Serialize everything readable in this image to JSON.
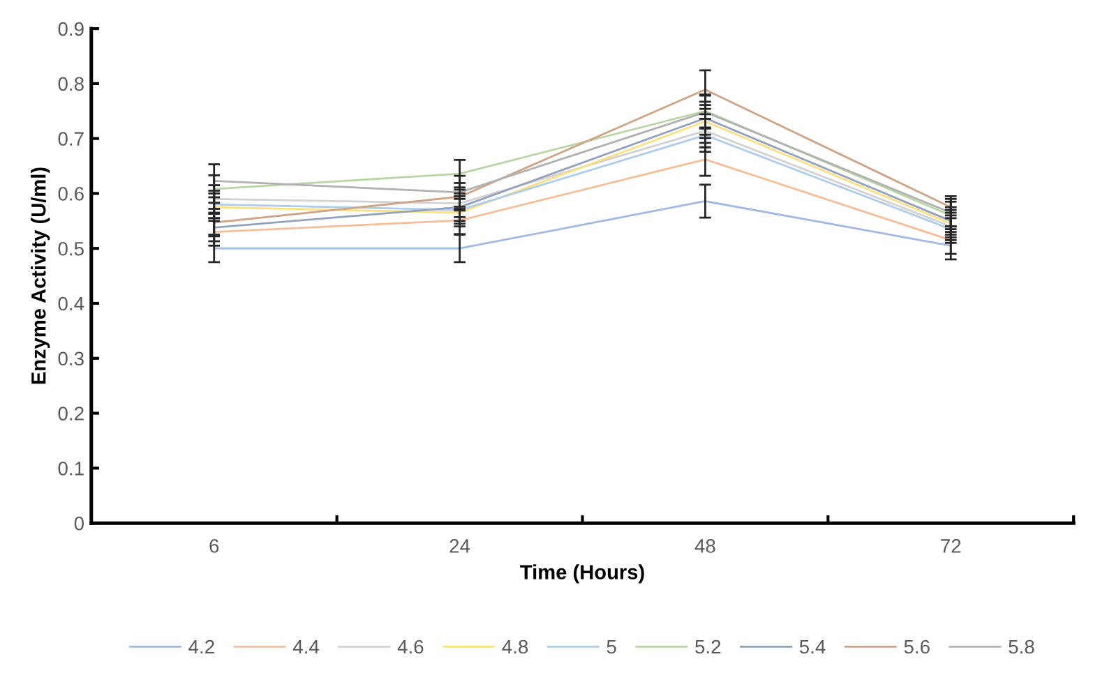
{
  "chart_data": {
    "type": "line",
    "xlabel": "Time (Hours)",
    "ylabel": "Enzyme Activity (U/ml)",
    "categories": [
      "6",
      "24",
      "48",
      "72"
    ],
    "ylim": [
      0,
      0.9
    ],
    "yticks": [
      0,
      0.1,
      0.2,
      0.3,
      0.4,
      0.5,
      0.6,
      0.7,
      0.8,
      0.9
    ],
    "grid": false,
    "legend": "bottom",
    "marker": "none",
    "line_style": "solid",
    "series": [
      {
        "name": "4.2",
        "color": "#a1b8e1",
        "values": [
          0.5,
          0.5,
          0.586,
          0.505
        ],
        "errors": [
          0.025,
          0.025,
          0.03,
          0.025
        ]
      },
      {
        "name": "4.4",
        "color": "#f6be98",
        "values": [
          0.53,
          0.551,
          0.662,
          0.515
        ],
        "errors": [
          0.025,
          0.025,
          0.03,
          0.025
        ]
      },
      {
        "name": "4.6",
        "color": "#d2d2d2",
        "values": [
          0.59,
          0.582,
          0.714,
          0.54
        ],
        "errors": [
          0.025,
          0.025,
          0.03,
          0.025
        ]
      },
      {
        "name": "4.8",
        "color": "#ffdf80",
        "values": [
          0.575,
          0.565,
          0.731,
          0.545
        ],
        "errors": [
          0.025,
          0.025,
          0.03,
          0.025
        ]
      },
      {
        "name": "5",
        "color": "#adcdea",
        "values": [
          0.58,
          0.57,
          0.706,
          0.535
        ],
        "errors": [
          0.025,
          0.025,
          0.03,
          0.025
        ]
      },
      {
        "name": "5.2",
        "color": "#b7d6a3",
        "values": [
          0.608,
          0.636,
          0.75,
          0.56
        ],
        "errors": [
          0.025,
          0.025,
          0.03,
          0.025
        ]
      },
      {
        "name": "5.4",
        "color": "#92a1bb",
        "values": [
          0.538,
          0.575,
          0.737,
          0.55
        ],
        "errors": [
          0.025,
          0.025,
          0.03,
          0.025
        ]
      },
      {
        "name": "5.6",
        "color": "#cea386",
        "values": [
          0.547,
          0.594,
          0.789,
          0.575
        ],
        "errors": [
          0.025,
          0.025,
          0.035,
          0.02
        ]
      },
      {
        "name": "5.8",
        "color": "#b1b1b1",
        "values": [
          0.623,
          0.602,
          0.748,
          0.565
        ],
        "errors": [
          0.03,
          0.03,
          0.03,
          0.025
        ]
      }
    ]
  }
}
